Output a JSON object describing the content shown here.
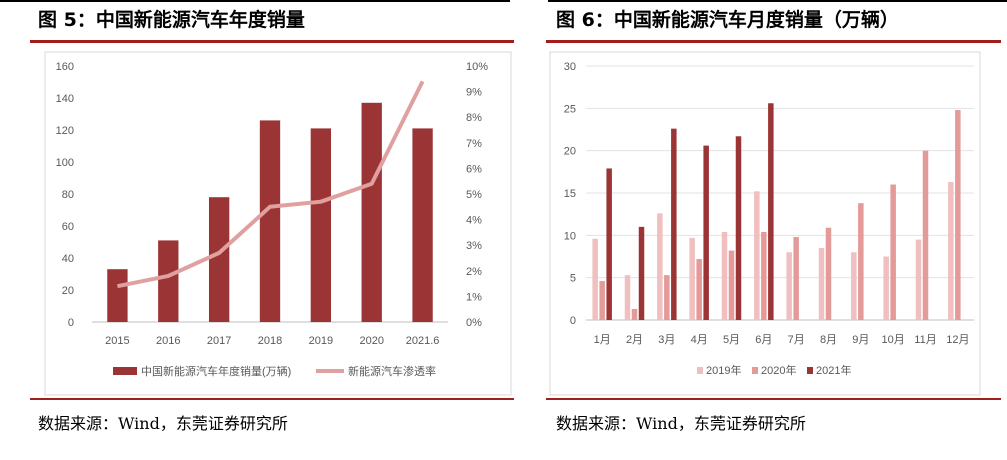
{
  "left_panel": {
    "title": "图 5：中国新能源汽车年度销量",
    "source": "数据来源：Wind，东莞证券研究所"
  },
  "right_panel": {
    "title": "图 6：中国新能源汽车月度销量（万辆）",
    "source": "数据来源：Wind，东莞证券研究所"
  },
  "colors": {
    "accent_rule": "#a31d1d",
    "bar_dark": "#9b3535",
    "line_pink": "#e0a0a0",
    "series_2019": "#f0c0c0",
    "series_2020": "#e59a9a",
    "series_2021": "#9b3535"
  },
  "chart_data": [
    {
      "type": "bar",
      "title": "",
      "categories": [
        "2015",
        "2016",
        "2017",
        "2018",
        "2019",
        "2020",
        "2021.6"
      ],
      "series": [
        {
          "name": "中国新能源汽车年度销量(万辆)",
          "axis": "left",
          "type": "bar",
          "values": [
            33,
            51,
            78,
            126,
            121,
            137,
            121
          ]
        },
        {
          "name": "新能源汽车渗透率",
          "axis": "right",
          "type": "line",
          "values": [
            1.4,
            1.8,
            2.7,
            4.5,
            4.7,
            5.4,
            9.4
          ]
        }
      ],
      "ylim": [
        0,
        160
      ],
      "yticks": [
        "0",
        "20",
        "40",
        "60",
        "80",
        "100",
        "120",
        "140",
        "160"
      ],
      "y2lim": [
        0,
        10
      ],
      "y2ticks": [
        "0%",
        "1%",
        "2%",
        "3%",
        "4%",
        "5%",
        "6%",
        "7%",
        "8%",
        "9%",
        "10%"
      ],
      "legend": "bottom",
      "grid": false
    },
    {
      "type": "bar",
      "title": "",
      "categories": [
        "1月",
        "2月",
        "3月",
        "4月",
        "5月",
        "6月",
        "7月",
        "8月",
        "9月",
        "10月",
        "11月",
        "12月"
      ],
      "series": [
        {
          "name": "2019年",
          "values": [
            9.6,
            5.3,
            12.6,
            9.7,
            10.4,
            15.2,
            8.0,
            8.5,
            8.0,
            7.5,
            9.5,
            16.3
          ]
        },
        {
          "name": "2020年",
          "values": [
            4.6,
            1.3,
            5.3,
            7.2,
            8.2,
            10.4,
            9.8,
            10.9,
            13.8,
            16.0,
            20.0,
            24.8
          ]
        },
        {
          "name": "2021年",
          "values": [
            17.9,
            11.0,
            22.6,
            20.6,
            21.7,
            25.6,
            null,
            null,
            null,
            null,
            null,
            null
          ]
        }
      ],
      "ylim": [
        0,
        30
      ],
      "yticks": [
        "0",
        "5",
        "10",
        "15",
        "20",
        "25",
        "30"
      ],
      "legend": "bottom",
      "grid": true
    }
  ]
}
